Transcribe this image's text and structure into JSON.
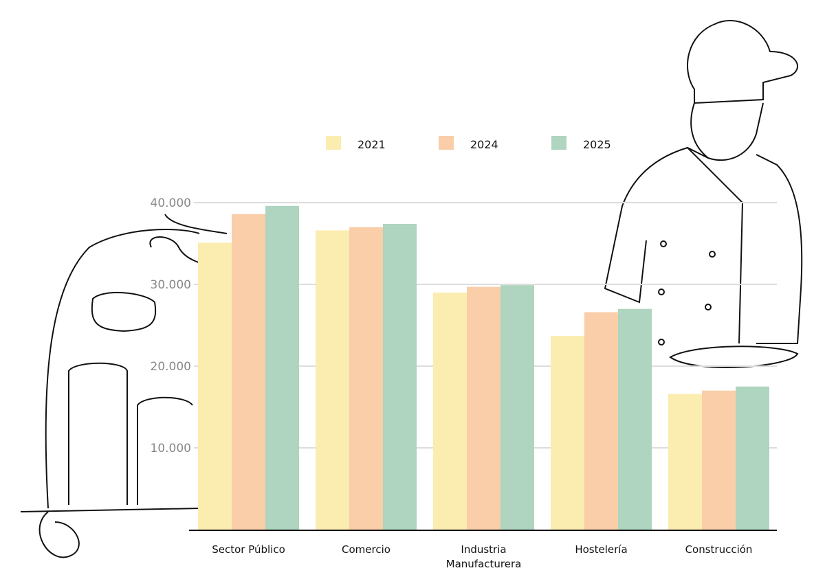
{
  "chart_data": {
    "type": "bar",
    "categories": [
      "Sector Público",
      "Comercio",
      "Industria Manufacturera",
      "Hostelería",
      "Construcción"
    ],
    "category_lines": [
      [
        "Sector Público"
      ],
      [
        "Comercio"
      ],
      [
        "Industria",
        "Manufacturera"
      ],
      [
        "Hostelería"
      ],
      [
        "Construcción"
      ]
    ],
    "series": [
      {
        "name": "2021",
        "color": "#fbecb0",
        "values": [
          35100,
          36600,
          29000,
          23700,
          16600
        ]
      },
      {
        "name": "2024",
        "color": "#f9cea8",
        "values": [
          38600,
          37000,
          29700,
          26600,
          17000
        ]
      },
      {
        "name": "2025",
        "color": "#afd4bf",
        "values": [
          39600,
          37400,
          29900,
          27000,
          17500
        ]
      }
    ],
    "yticks": [
      10000,
      20000,
      30000,
      40000
    ],
    "ytick_labels": [
      "10.000",
      "20.000",
      "30.000",
      "40.000"
    ],
    "ylim": [
      0,
      40000
    ],
    "grid": true,
    "legend": "top",
    "title": "",
    "xlabel": "",
    "ylabel": ""
  }
}
